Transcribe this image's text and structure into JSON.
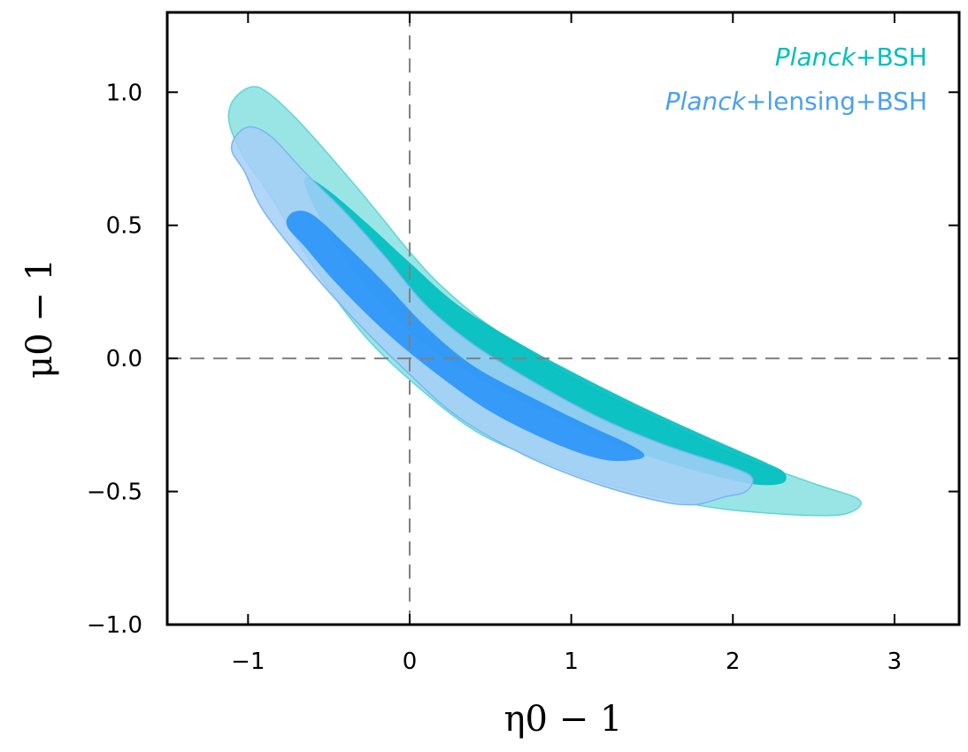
{
  "chart_data": {
    "type": "contour",
    "xlabel": "η0 − 1",
    "ylabel": "μ0 − 1",
    "xlim": [
      -1.5,
      3.4
    ],
    "ylim": [
      -1.0,
      1.3
    ],
    "x_ticks": [
      {
        "value": -1,
        "label": "−1"
      },
      {
        "value": 0,
        "label": "0"
      },
      {
        "value": 1,
        "label": "1"
      },
      {
        "value": 2,
        "label": "2"
      },
      {
        "value": 3,
        "label": "3"
      }
    ],
    "y_ticks": [
      {
        "value": -1.0,
        "label": "−1.0"
      },
      {
        "value": -0.5,
        "label": "−0.5"
      },
      {
        "value": 0.0,
        "label": "0.0"
      },
      {
        "value": 0.5,
        "label": "0.5"
      },
      {
        "value": 1.0,
        "label": "1.0"
      }
    ],
    "reference_lines": {
      "x": 0,
      "y": 0,
      "style": "dashed",
      "color": "#808080"
    },
    "legend_position": "top-right",
    "series": [
      {
        "name": "Planck+BSH",
        "name_parts": [
          "Planck",
          "+BSH"
        ],
        "color": "#00bfbf",
        "outer_fill": "#99e5e5",
        "inner_fill": "#00bfbf",
        "edge_color": "#5fd5d5",
        "contours": [
          {
            "level": "outer",
            "points": [
              [
                -0.98,
                1.02
              ],
              [
                -0.88,
                1.0
              ],
              [
                -0.7,
                0.9
              ],
              [
                -0.45,
                0.73
              ],
              [
                -0.2,
                0.55
              ],
              [
                0.0,
                0.4
              ],
              [
                0.2,
                0.27
              ],
              [
                0.5,
                0.12
              ],
              [
                1.0,
                -0.07
              ],
              [
                1.5,
                -0.22
              ],
              [
                2.0,
                -0.36
              ],
              [
                2.5,
                -0.47
              ],
              [
                2.78,
                -0.53
              ],
              [
                2.72,
                -0.58
              ],
              [
                2.5,
                -0.59
              ],
              [
                2.0,
                -0.57
              ],
              [
                1.6,
                -0.53
              ],
              [
                1.2,
                -0.47
              ],
              [
                0.8,
                -0.38
              ],
              [
                0.4,
                -0.27
              ],
              [
                0.0,
                -0.08
              ],
              [
                -0.3,
                0.1
              ],
              [
                -0.6,
                0.35
              ],
              [
                -0.85,
                0.6
              ],
              [
                -1.02,
                0.75
              ],
              [
                -1.1,
                0.85
              ],
              [
                -1.12,
                0.92
              ],
              [
                -1.08,
                0.98
              ]
            ]
          },
          {
            "level": "inner",
            "points": [
              [
                -0.65,
                0.68
              ],
              [
                -0.5,
                0.63
              ],
              [
                -0.25,
                0.5
              ],
              [
                0.0,
                0.36
              ],
              [
                0.3,
                0.2
              ],
              [
                0.7,
                0.05
              ],
              [
                1.1,
                -0.08
              ],
              [
                1.5,
                -0.2
              ],
              [
                1.9,
                -0.31
              ],
              [
                2.2,
                -0.39
              ],
              [
                2.32,
                -0.43
              ],
              [
                2.3,
                -0.47
              ],
              [
                2.1,
                -0.47
              ],
              [
                1.7,
                -0.41
              ],
              [
                1.3,
                -0.33
              ],
              [
                0.9,
                -0.22
              ],
              [
                0.5,
                -0.1
              ],
              [
                0.1,
                0.05
              ],
              [
                -0.2,
                0.22
              ],
              [
                -0.45,
                0.42
              ],
              [
                -0.6,
                0.58
              ]
            ]
          }
        ]
      },
      {
        "name": "Planck+lensing+BSH",
        "name_parts": [
          "Planck",
          "+lensing+BSH"
        ],
        "color": "#4aa0f0",
        "outer_fill": "#a4cff8",
        "inner_fill": "#2b95f7",
        "edge_color": "#78b6f0",
        "contours": [
          {
            "level": "outer",
            "points": [
              [
                -0.98,
                0.87
              ],
              [
                -0.85,
                0.83
              ],
              [
                -0.65,
                0.7
              ],
              [
                -0.4,
                0.55
              ],
              [
                -0.15,
                0.38
              ],
              [
                0.1,
                0.2
              ],
              [
                0.4,
                0.05
              ],
              [
                0.8,
                -0.1
              ],
              [
                1.2,
                -0.23
              ],
              [
                1.6,
                -0.33
              ],
              [
                2.0,
                -0.41
              ],
              [
                2.12,
                -0.45
              ],
              [
                2.08,
                -0.5
              ],
              [
                1.95,
                -0.52
              ],
              [
                1.75,
                -0.55
              ],
              [
                1.5,
                -0.53
              ],
              [
                1.1,
                -0.46
              ],
              [
                0.7,
                -0.36
              ],
              [
                0.3,
                -0.22
              ],
              [
                0.0,
                -0.06
              ],
              [
                -0.3,
                0.12
              ],
              [
                -0.6,
                0.32
              ],
              [
                -0.9,
                0.55
              ],
              [
                -1.02,
                0.7
              ],
              [
                -1.1,
                0.78
              ],
              [
                -1.07,
                0.84
              ]
            ]
          },
          {
            "level": "inner",
            "points": [
              [
                -0.72,
                0.55
              ],
              [
                -0.6,
                0.54
              ],
              [
                -0.4,
                0.43
              ],
              [
                -0.15,
                0.28
              ],
              [
                0.1,
                0.12
              ],
              [
                0.4,
                -0.03
              ],
              [
                0.8,
                -0.16
              ],
              [
                1.1,
                -0.25
              ],
              [
                1.35,
                -0.32
              ],
              [
                1.45,
                -0.36
              ],
              [
                1.4,
                -0.38
              ],
              [
                1.2,
                -0.38
              ],
              [
                0.9,
                -0.32
              ],
              [
                0.5,
                -0.2
              ],
              [
                0.15,
                -0.05
              ],
              [
                -0.15,
                0.1
              ],
              [
                -0.45,
                0.28
              ],
              [
                -0.65,
                0.42
              ],
              [
                -0.76,
                0.5
              ]
            ]
          }
        ]
      }
    ]
  }
}
